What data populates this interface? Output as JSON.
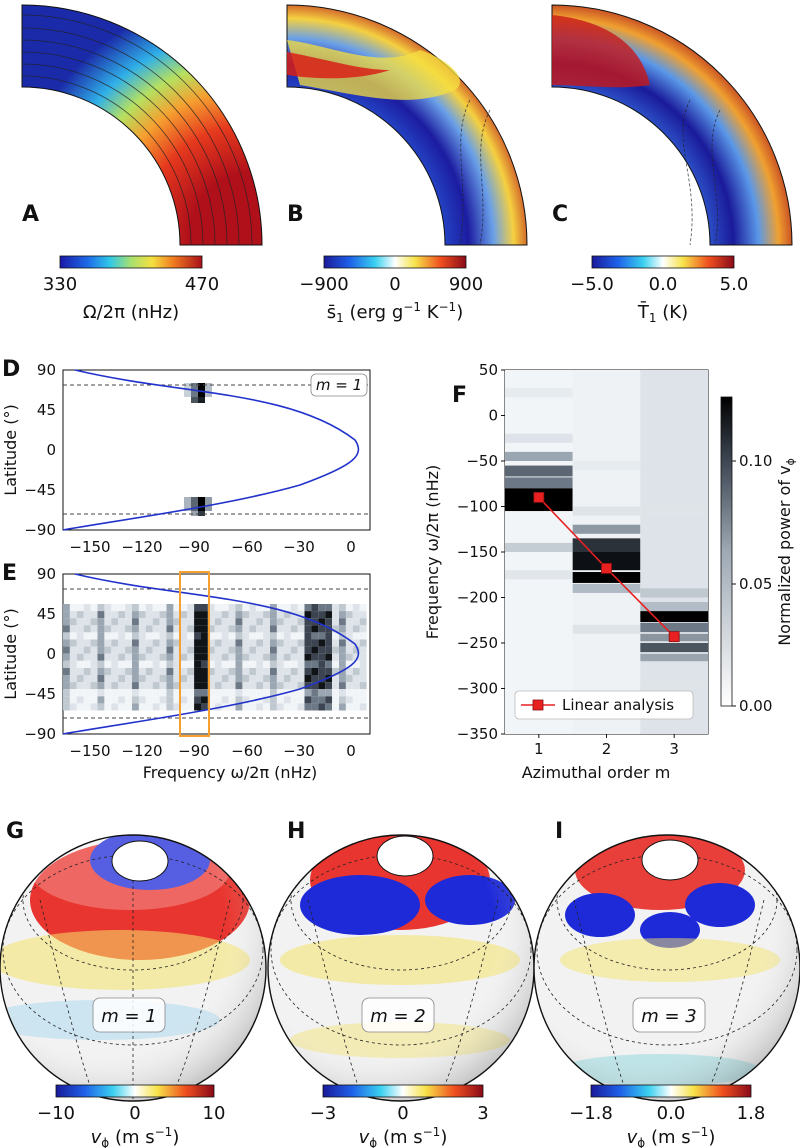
{
  "figure": {
    "panel_labels": [
      "A",
      "B",
      "C",
      "D",
      "E",
      "F",
      "G",
      "H",
      "I"
    ],
    "colorbars_top": [
      {
        "ticks": [
          "330",
          "470"
        ],
        "label": "Ω/2π (nHz)"
      },
      {
        "ticks": [
          "−900",
          "0",
          "900"
        ],
        "label_main": "s̄",
        "label_sub": "1",
        "label_unit": " (erg g",
        "label_exp1": "−1",
        "label_mid": " K",
        "label_exp2": "−1",
        "label_end": ")"
      },
      {
        "ticks": [
          "−5.0",
          "0.0",
          "5.0"
        ],
        "label_main": "T̄",
        "label_sub": "1",
        "label_unit": " (K)"
      }
    ],
    "colorbars_bottom": [
      {
        "ticks": [
          "−10",
          "0",
          "10"
        ]
      },
      {
        "ticks": [
          "−3",
          "0",
          "3"
        ]
      },
      {
        "ticks": [
          "−1.8",
          "0.0",
          "1.8"
        ]
      }
    ],
    "vphi_label": {
      "main": "v",
      "sub": "ϕ",
      "unit": " (m s",
      "exp": "−1",
      "end": ")"
    },
    "spheres": [
      {
        "m_label": "m = 1"
      },
      {
        "m_label": "m = 2"
      },
      {
        "m_label": "m = 3"
      }
    ],
    "panel_d": {
      "legend": "m = 1"
    },
    "latitude_label": "Latitude (°)",
    "latitude_ticks": [
      "90",
      "45",
      "0",
      "−45",
      "−90"
    ],
    "freq_ticks": [
      "−150",
      "−120",
      "−90",
      "−60",
      "−30",
      "0"
    ],
    "freq_label": "Frequency  ω/2π  (nHz)",
    "colors": {
      "curve": "#2233cc",
      "highlight_box": "#f5a030",
      "linear_analysis": "#e82020"
    }
  },
  "chart_data": [
    {
      "type": "heatmap",
      "panel": "F",
      "title": "",
      "xlabel": "Azimuthal order m",
      "ylabel": "Frequency  ω/2π  (nHz)",
      "x_ticks": [
        "1",
        "2",
        "3"
      ],
      "y_ticks": [
        "50",
        "0",
        "−50",
        "−100",
        "−150",
        "−200",
        "−250",
        "−300",
        "−350"
      ],
      "ylim": [
        -350,
        50
      ],
      "colorbar": {
        "label": "Normalized power of v",
        "label_sub": "ϕ",
        "ticks": [
          "0.00",
          "0.05",
          "0.10"
        ],
        "range": [
          0,
          0.12
        ]
      },
      "series": [
        {
          "name": "Linear analysis",
          "x": [
            1,
            2,
            3
          ],
          "y": [
            -90,
            -168,
            -243
          ]
        }
      ],
      "legend": "bottom-left"
    }
  ]
}
